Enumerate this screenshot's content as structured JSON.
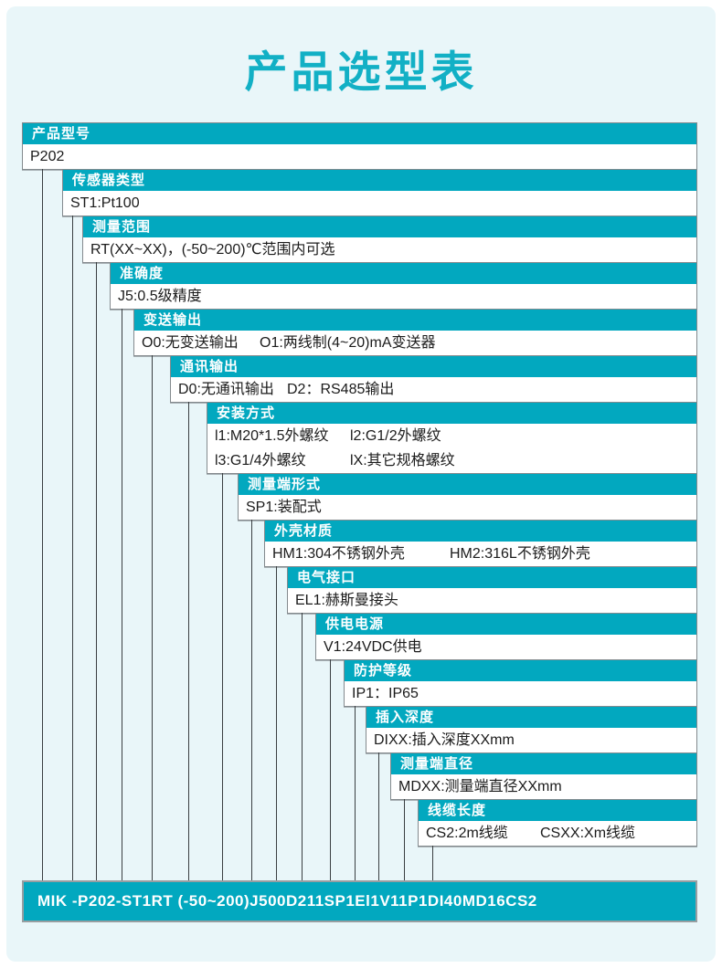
{
  "title": "产品选型表",
  "selection_table": {
    "rows": [
      {
        "label": "产品型号",
        "lines": [
          [
            "P202"
          ]
        ]
      },
      {
        "label": "传感器类型",
        "lines": [
          [
            "ST1:Pt100"
          ]
        ]
      },
      {
        "label": "测量范围",
        "lines": [
          [
            "RT(XX~XX)，(-50~200)℃范围内可选"
          ]
        ]
      },
      {
        "label": "准确度",
        "lines": [
          [
            "J5:0.5级精度"
          ]
        ]
      },
      {
        "label": "变送输出",
        "lines": [
          [
            "O0:无变送输出",
            "O1:两线制(4~20)mA变送器"
          ]
        ]
      },
      {
        "label": "通讯输出",
        "lines": [
          [
            "D0:无通讯输出",
            "D2：RS485输出"
          ]
        ]
      },
      {
        "label": "安装方式",
        "lines": [
          [
            "l1:M20*1.5外螺纹",
            "l2:G1/2外螺纹"
          ],
          [
            "l3:G1/4外螺纹",
            "lX:其它规格螺纹"
          ]
        ]
      },
      {
        "label": "测量端形式",
        "lines": [
          [
            "SP1:装配式"
          ]
        ]
      },
      {
        "label": "外壳材质",
        "lines": [
          [
            "HM1:304不锈钢外壳",
            "HM2:316L不锈钢外壳"
          ]
        ]
      },
      {
        "label": "电气接口",
        "lines": [
          [
            "EL1:赫斯曼接头"
          ]
        ]
      },
      {
        "label": "供电电源",
        "lines": [
          [
            "V1:24VDC供电"
          ]
        ]
      },
      {
        "label": "防护等级",
        "lines": [
          [
            "IP1：IP65"
          ]
        ]
      },
      {
        "label": "插入深度",
        "lines": [
          [
            "DIXX:插入深度XXmm"
          ]
        ]
      },
      {
        "label": "测量端直径",
        "lines": [
          [
            "MDXX:测量端直径XXmm"
          ]
        ]
      },
      {
        "label": "线缆长度",
        "lines": [
          [
            "CS2:2m线缆",
            "CSXX:Xm线缆"
          ]
        ]
      }
    ]
  },
  "model_code": "MIK -P202-ST1RT (-50~200)J500D211SP1El1V11P1DI40MD16CS2",
  "colors": {
    "accent": "#02a8bf",
    "title_text": "#12b0c5",
    "page_background": "#e9f6f9",
    "value_text": "#1b1b1b",
    "box_border": "#848a8e",
    "connector": "#3a3f42"
  }
}
